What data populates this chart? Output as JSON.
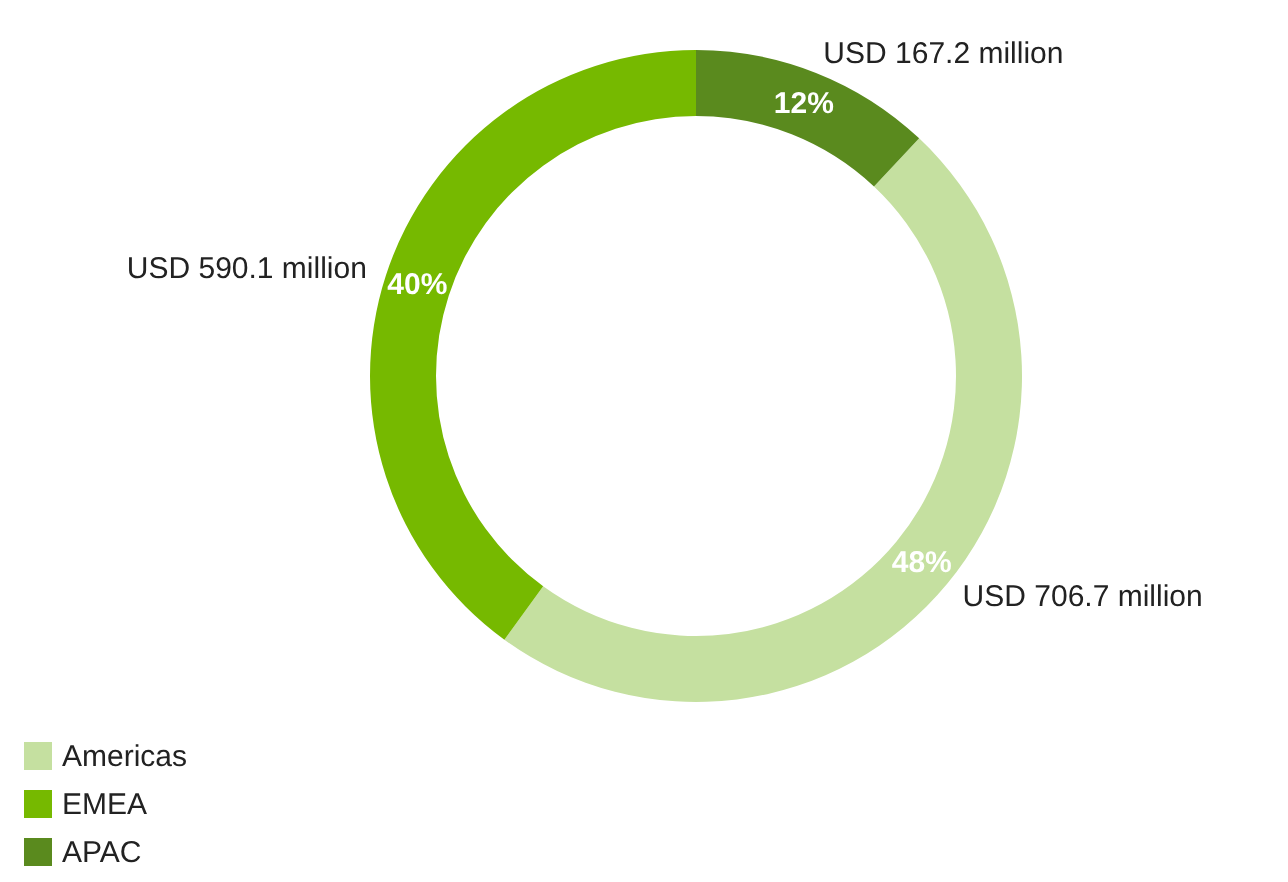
{
  "chart_data": {
    "type": "donut",
    "categories": [
      "Americas",
      "EMEA",
      "APAC"
    ],
    "values": [
      48,
      40,
      12
    ],
    "colors": [
      "#c5e0a0",
      "#76b900",
      "#5a8a1e"
    ],
    "value_labels": [
      "48%",
      "40%",
      "12%"
    ],
    "annotations": [
      {
        "text": "USD 706.7 million",
        "x": "Americas"
      },
      {
        "text": "USD 590.1 million",
        "x": "EMEA"
      },
      {
        "text": "USD 167.2 million",
        "x": "APAC"
      }
    ],
    "legend": "bottom left"
  }
}
